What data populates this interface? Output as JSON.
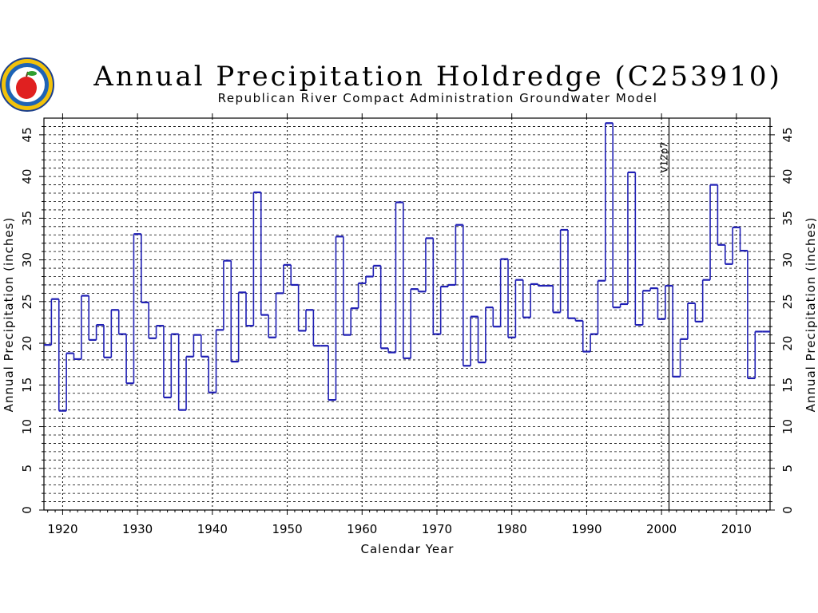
{
  "chart_data": {
    "type": "line",
    "style": "step",
    "title": "Annual Precipitation Holdredge (C253910)",
    "subtitle": "Republican River Compact Administration Groundwater Model",
    "xlabel": "Calendar Year",
    "ylabel": "Annual Precipitation (inches)",
    "ylabel_right": "Annual Precipitation (inches)",
    "xlim": [
      1917.5,
      2014.5
    ],
    "ylim": [
      0,
      47
    ],
    "x_ticks": [
      1920,
      1930,
      1940,
      1950,
      1960,
      1970,
      1980,
      1990,
      2000,
      2010
    ],
    "x_tick_labels": [
      "1920",
      "1930",
      "1940",
      "1950",
      "1960",
      "1970",
      "1980",
      "1990",
      "2000",
      "2010"
    ],
    "y_ticks": [
      0,
      5,
      10,
      15,
      20,
      25,
      30,
      35,
      40,
      45
    ],
    "y_tick_labels": [
      "0",
      "5",
      "10",
      "15",
      "20",
      "25",
      "30",
      "35",
      "40",
      "45"
    ],
    "grid": true,
    "series_color": "#1f1fb4",
    "marker": {
      "x": 2001,
      "label": "V12p7"
    },
    "years": [
      1918,
      1919,
      1920,
      1921,
      1922,
      1923,
      1924,
      1925,
      1926,
      1927,
      1928,
      1929,
      1930,
      1931,
      1932,
      1933,
      1934,
      1935,
      1936,
      1937,
      1938,
      1939,
      1940,
      1941,
      1942,
      1943,
      1944,
      1945,
      1946,
      1947,
      1948,
      1949,
      1950,
      1951,
      1952,
      1953,
      1954,
      1955,
      1956,
      1957,
      1958,
      1959,
      1960,
      1961,
      1962,
      1963,
      1964,
      1965,
      1966,
      1967,
      1968,
      1969,
      1970,
      1971,
      1972,
      1973,
      1974,
      1975,
      1976,
      1977,
      1978,
      1979,
      1980,
      1981,
      1982,
      1983,
      1984,
      1985,
      1986,
      1987,
      1988,
      1989,
      1990,
      1991,
      1992,
      1993,
      1994,
      1995,
      1996,
      1997,
      1998,
      1999,
      2000,
      2001,
      2002,
      2003,
      2004,
      2005,
      2006,
      2007,
      2008,
      2009,
      2010,
      2011,
      2012,
      2013,
      2014
    ],
    "values": [
      19.8,
      25.3,
      11.9,
      18.8,
      18.1,
      25.7,
      20.4,
      22.2,
      18.3,
      24.0,
      21.1,
      15.2,
      33.1,
      24.9,
      20.6,
      22.1,
      13.5,
      21.1,
      12.0,
      18.4,
      21.0,
      18.4,
      14.1,
      21.6,
      29.9,
      17.8,
      26.1,
      22.1,
      38.1,
      23.4,
      20.7,
      26.0,
      29.4,
      27.0,
      21.5,
      24.0,
      19.7,
      19.7,
      13.2,
      32.8,
      21.0,
      24.2,
      27.2,
      28.0,
      29.3,
      19.4,
      18.9,
      36.9,
      18.2,
      26.5,
      26.2,
      32.6,
      21.1,
      26.8,
      27.0,
      34.2,
      17.3,
      23.2,
      17.7,
      24.3,
      22.0,
      30.1,
      20.7,
      27.6,
      23.1,
      27.1,
      26.9,
      26.9,
      23.7,
      33.6,
      23.0,
      22.7,
      19.0,
      21.1,
      27.5,
      46.4,
      24.3,
      24.7,
      40.5,
      22.2,
      26.3,
      26.6,
      22.9,
      26.9,
      16.0,
      20.5,
      24.8,
      22.6,
      27.6,
      39.0,
      31.8,
      29.5,
      33.9,
      31.1,
      15.8,
      21.4,
      21.4
    ]
  },
  "logo": {
    "name": "RRCA seal logo"
  }
}
